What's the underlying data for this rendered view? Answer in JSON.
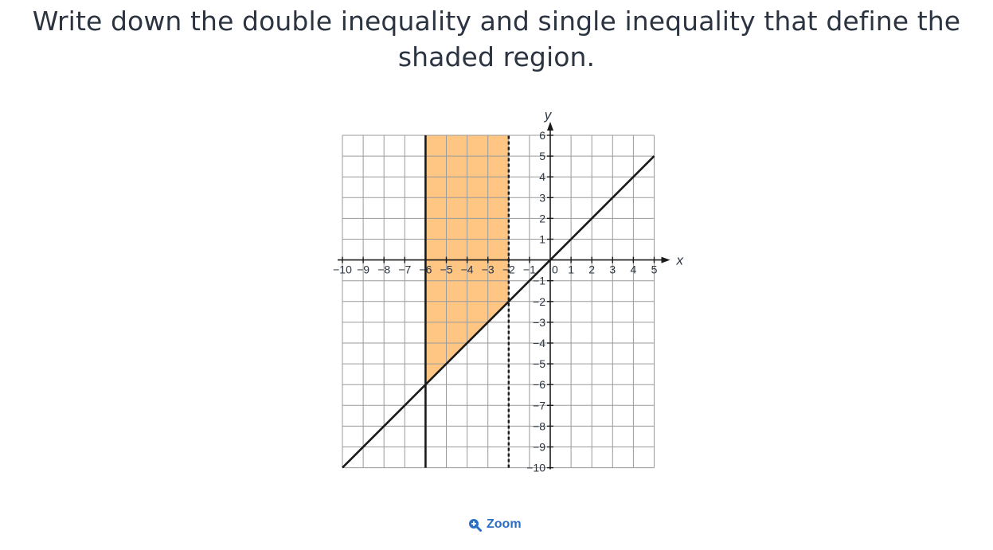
{
  "question": {
    "text": "Write down the double inequality and single inequality that define the shaded region."
  },
  "zoom": {
    "label": "Zoom",
    "icon": "zoom-in-icon"
  },
  "colors": {
    "grid": "#9a9a9a",
    "axis": "#1a1a1a",
    "shade": "#ffc583",
    "line": "#1a1a1a",
    "text": "#2b3440",
    "link": "#2a6fc2"
  },
  "chart_data": {
    "type": "line",
    "title": "",
    "xlabel": "x",
    "ylabel": "y",
    "xlim": [
      -10,
      5
    ],
    "ylim": [
      -10,
      6
    ],
    "x_ticks": [
      "-10",
      "-9",
      "-8",
      "-7",
      "-6",
      "-5",
      "-4",
      "-3",
      "-2",
      "-1",
      "0",
      "1",
      "2",
      "3",
      "4",
      "5"
    ],
    "y_ticks": [
      "6",
      "5",
      "4",
      "3",
      "2",
      "1",
      "-1",
      "-2",
      "-3",
      "-4",
      "-5",
      "-6",
      "-7",
      "-8",
      "-9",
      "-10"
    ],
    "grid": true,
    "series": [
      {
        "label": "y = x",
        "x": [
          -10,
          5
        ],
        "y": [
          -10,
          5
        ],
        "style": "solid"
      },
      {
        "label": "x = -6",
        "x": [
          -6,
          -6
        ],
        "y": [
          -10,
          6
        ],
        "style": "solid"
      },
      {
        "label": "x = -2",
        "x": [
          -2,
          -2
        ],
        "y": [
          -10,
          6
        ],
        "style": "dashed"
      }
    ],
    "shaded_region": {
      "vertices": [
        [
          -6,
          6
        ],
        [
          -2,
          6
        ],
        [
          -2,
          -2
        ],
        [
          -6,
          -6
        ]
      ],
      "color": "#ffc583"
    }
  }
}
